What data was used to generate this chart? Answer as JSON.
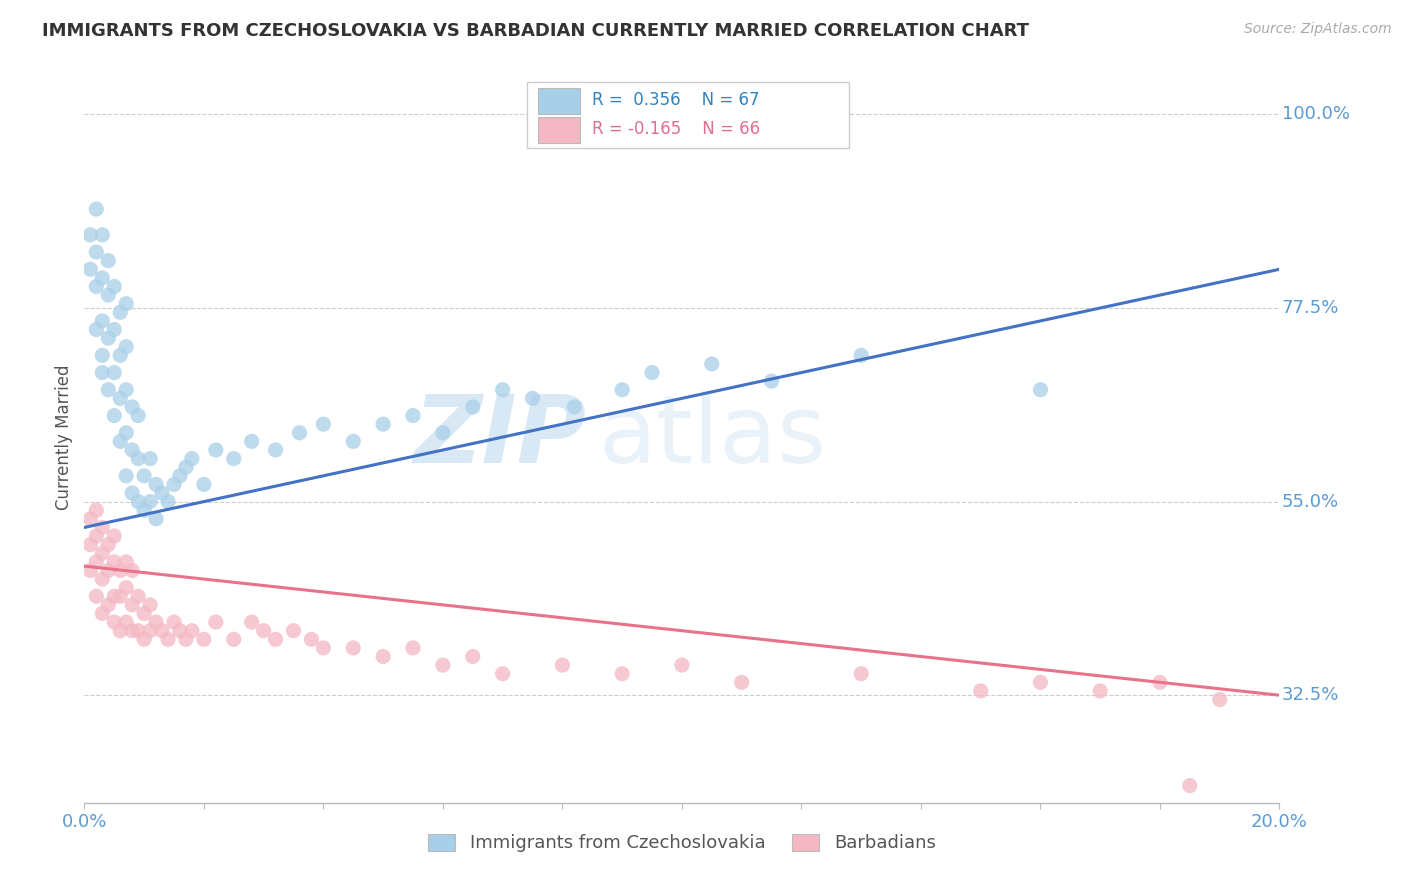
{
  "title": "IMMIGRANTS FROM CZECHOSLOVAKIA VS BARBADIAN CURRENTLY MARRIED CORRELATION CHART",
  "source": "Source: ZipAtlas.com",
  "ylabel": "Currently Married",
  "xlim": [
    0.0,
    0.2
  ],
  "ylim": [
    0.2,
    1.05
  ],
  "xticks": [
    0.0,
    0.02,
    0.04,
    0.06,
    0.08,
    0.1,
    0.12,
    0.14,
    0.16,
    0.18,
    0.2
  ],
  "yticks": [
    0.325,
    0.55,
    0.775,
    1.0
  ],
  "yticklabels": [
    "32.5%",
    "55.0%",
    "77.5%",
    "100.0%"
  ],
  "blue_R": 0.356,
  "blue_N": 67,
  "pink_R": -0.165,
  "pink_N": 66,
  "blue_color": "#a8cfe8",
  "pink_color": "#f4b8c4",
  "blue_line_color": "#4472c4",
  "pink_line_color": "#e8728a",
  "legend_label_blue": "Immigrants from Czechoslovakia",
  "legend_label_pink": "Barbadians",
  "watermark_zip": "ZIP",
  "watermark_atlas": "atlas",
  "blue_scatter_x": [
    0.001,
    0.001,
    0.002,
    0.002,
    0.002,
    0.002,
    0.003,
    0.003,
    0.003,
    0.003,
    0.003,
    0.004,
    0.004,
    0.004,
    0.004,
    0.005,
    0.005,
    0.005,
    0.005,
    0.006,
    0.006,
    0.006,
    0.006,
    0.007,
    0.007,
    0.007,
    0.007,
    0.007,
    0.008,
    0.008,
    0.008,
    0.009,
    0.009,
    0.009,
    0.01,
    0.01,
    0.011,
    0.011,
    0.012,
    0.012,
    0.013,
    0.014,
    0.015,
    0.016,
    0.017,
    0.018,
    0.02,
    0.022,
    0.025,
    0.028,
    0.032,
    0.036,
    0.04,
    0.045,
    0.05,
    0.055,
    0.06,
    0.065,
    0.07,
    0.075,
    0.082,
    0.09,
    0.095,
    0.105,
    0.115,
    0.13,
    0.16
  ],
  "blue_scatter_y": [
    0.82,
    0.86,
    0.75,
    0.8,
    0.84,
    0.89,
    0.7,
    0.76,
    0.81,
    0.86,
    0.72,
    0.68,
    0.74,
    0.79,
    0.83,
    0.65,
    0.7,
    0.75,
    0.8,
    0.62,
    0.67,
    0.72,
    0.77,
    0.58,
    0.63,
    0.68,
    0.73,
    0.78,
    0.56,
    0.61,
    0.66,
    0.55,
    0.6,
    0.65,
    0.54,
    0.58,
    0.55,
    0.6,
    0.53,
    0.57,
    0.56,
    0.55,
    0.57,
    0.58,
    0.59,
    0.6,
    0.57,
    0.61,
    0.6,
    0.62,
    0.61,
    0.63,
    0.64,
    0.62,
    0.64,
    0.65,
    0.63,
    0.66,
    0.68,
    0.67,
    0.66,
    0.68,
    0.7,
    0.71,
    0.69,
    0.72,
    0.68
  ],
  "pink_scatter_x": [
    0.001,
    0.001,
    0.001,
    0.002,
    0.002,
    0.002,
    0.002,
    0.003,
    0.003,
    0.003,
    0.003,
    0.004,
    0.004,
    0.004,
    0.005,
    0.005,
    0.005,
    0.005,
    0.006,
    0.006,
    0.006,
    0.007,
    0.007,
    0.007,
    0.008,
    0.008,
    0.008,
    0.009,
    0.009,
    0.01,
    0.01,
    0.011,
    0.011,
    0.012,
    0.013,
    0.014,
    0.015,
    0.016,
    0.017,
    0.018,
    0.02,
    0.022,
    0.025,
    0.028,
    0.03,
    0.032,
    0.035,
    0.038,
    0.04,
    0.045,
    0.05,
    0.055,
    0.06,
    0.065,
    0.07,
    0.08,
    0.09,
    0.1,
    0.11,
    0.13,
    0.15,
    0.16,
    0.17,
    0.18,
    0.185,
    0.19
  ],
  "pink_scatter_y": [
    0.47,
    0.5,
    0.53,
    0.44,
    0.48,
    0.51,
    0.54,
    0.42,
    0.46,
    0.49,
    0.52,
    0.43,
    0.47,
    0.5,
    0.41,
    0.44,
    0.48,
    0.51,
    0.4,
    0.44,
    0.47,
    0.41,
    0.45,
    0.48,
    0.4,
    0.43,
    0.47,
    0.4,
    0.44,
    0.39,
    0.42,
    0.4,
    0.43,
    0.41,
    0.4,
    0.39,
    0.41,
    0.4,
    0.39,
    0.4,
    0.39,
    0.41,
    0.39,
    0.41,
    0.4,
    0.39,
    0.4,
    0.39,
    0.38,
    0.38,
    0.37,
    0.38,
    0.36,
    0.37,
    0.35,
    0.36,
    0.35,
    0.36,
    0.34,
    0.35,
    0.33,
    0.34,
    0.33,
    0.34,
    0.22,
    0.32
  ],
  "blue_trend_x": [
    0.0,
    0.2
  ],
  "blue_trend_y": [
    0.52,
    0.82
  ],
  "pink_trend_x": [
    0.0,
    0.2
  ],
  "pink_trend_y": [
    0.475,
    0.325
  ]
}
